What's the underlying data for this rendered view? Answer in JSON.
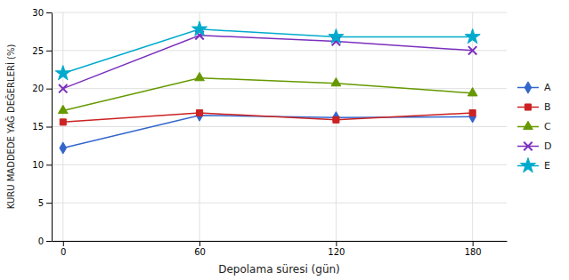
{
  "chart_data": {
    "type": "line",
    "x": [
      0,
      60,
      120,
      180
    ],
    "series": [
      {
        "name": "A",
        "color": "#3366CC",
        "marker": "diamond",
        "values": [
          12.2,
          16.5,
          16.2,
          16.3
        ]
      },
      {
        "name": "B",
        "color": "#CC2222",
        "marker": "square",
        "values": [
          15.6,
          16.8,
          15.9,
          16.8
        ]
      },
      {
        "name": "C",
        "color": "#669900",
        "marker": "triangle",
        "values": [
          17.1,
          21.4,
          20.7,
          19.4
        ]
      },
      {
        "name": "D",
        "color": "#7B2FBE",
        "marker": "x",
        "values": [
          20.0,
          27.0,
          26.2,
          25.0
        ]
      },
      {
        "name": "E",
        "color": "#00AACC",
        "marker": "star",
        "values": [
          22.0,
          27.8,
          26.8,
          26.8
        ]
      }
    ],
    "xlabel": "Depolama süresi (gün)",
    "ylabel": "KURU MADDEDE YAĞ DEĞERLERİ (%)",
    "xlim": [
      -5,
      195
    ],
    "ylim": [
      0,
      30
    ],
    "xticks": [
      0,
      60,
      120,
      180
    ],
    "yticks": [
      0,
      5,
      10,
      15,
      20,
      25,
      30
    ],
    "grid": true,
    "legend": "right"
  }
}
